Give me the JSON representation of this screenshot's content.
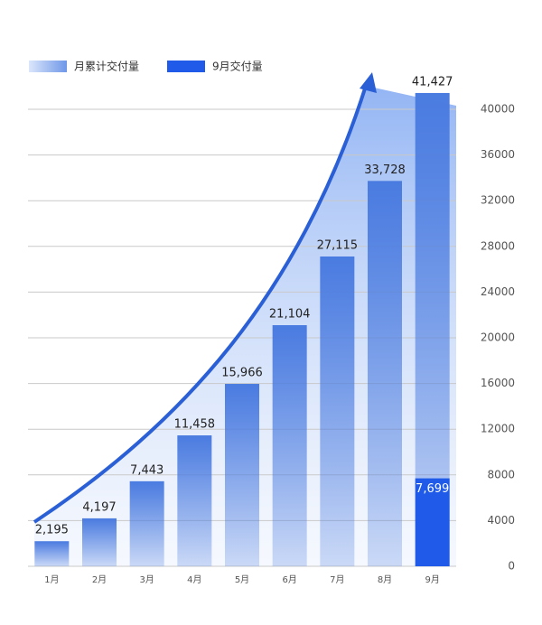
{
  "chart_data": {
    "type": "bar",
    "categories": [
      "1月",
      "2月",
      "3月",
      "4月",
      "5月",
      "6月",
      "7月",
      "8月",
      "9月"
    ],
    "series": [
      {
        "name": "月累计交付量",
        "color": "#4a7be0",
        "values": [
          2195,
          4197,
          7443,
          11458,
          15966,
          21104,
          27115,
          33728,
          41427
        ],
        "value_labels": [
          "2,195",
          "4,197",
          "7,443",
          "11,458",
          "15,966",
          "21,104",
          "27,115",
          "33,728",
          "41,427"
        ]
      },
      {
        "name": "9月交付量",
        "color": "#1f5be8",
        "values": [
          null,
          null,
          null,
          null,
          null,
          null,
          null,
          null,
          7699
        ],
        "value_labels": [
          null,
          null,
          null,
          null,
          null,
          null,
          null,
          null,
          "7,699"
        ]
      }
    ],
    "ylim": [
      0,
      40000
    ],
    "yticks": [
      0,
      4000,
      8000,
      12000,
      16000,
      20000,
      24000,
      28000,
      32000,
      36000,
      40000
    ],
    "grid": true
  }
}
